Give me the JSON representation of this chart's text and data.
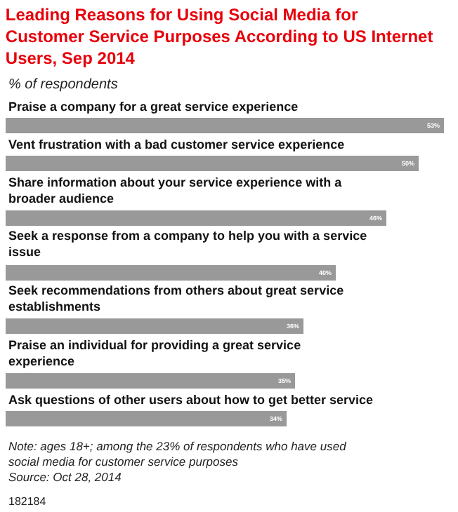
{
  "chart_data": {
    "type": "bar",
    "orientation": "horizontal",
    "title": "Leading Reasons for Using Social Media for Customer Service Purposes According to US Internet Users, Sep 2014",
    "subtitle": "% of respondents",
    "categories": [
      "Praise a company for a great service experience",
      "Vent frustration with a bad customer service experience",
      "Share information about your service experience with a broader audience",
      "Seek a response from a company to help you with a service issue",
      "Seek recommendations from others about great service establishments",
      "Praise an individual for providing a great service experience",
      "Ask questions of other users about how to get better service"
    ],
    "values": [
      53,
      50,
      46,
      40,
      36,
      35,
      34
    ],
    "value_labels": [
      "53%",
      "50%",
      "46%",
      "40%",
      "36%",
      "35%",
      "34%"
    ],
    "color": "#999999",
    "annotations": [
      "Note: ages 18+; among the 23% of respondents who have used social media for customer service purposes",
      "Source: Oct 28, 2014",
      "182184"
    ]
  }
}
